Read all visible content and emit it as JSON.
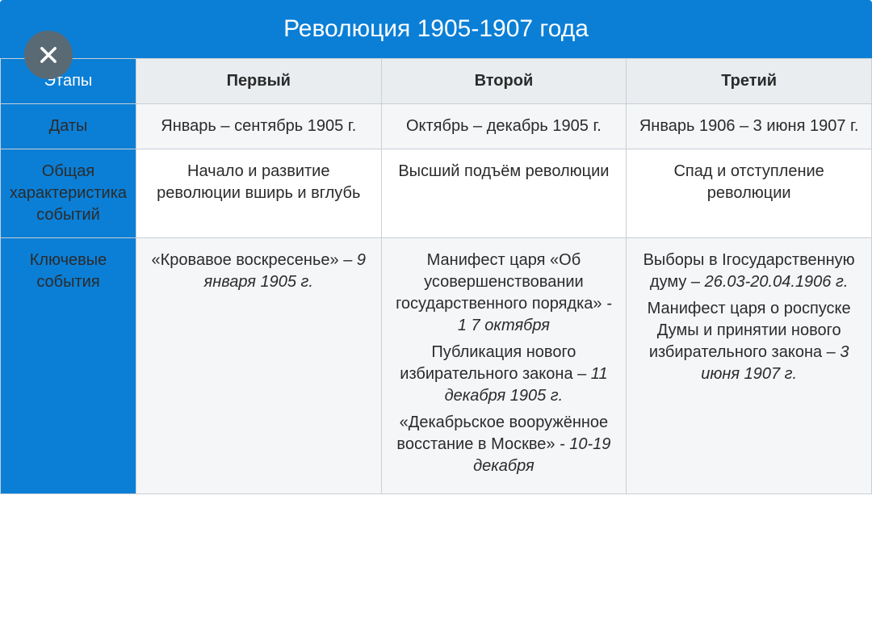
{
  "title": "Революция 1905-1907 года",
  "colors": {
    "header_bg": "#0b7fd6",
    "header_text": "#ffffff",
    "close_bg": "#5a6a75",
    "border": "#c9cfd4",
    "row_alt": "#f4f6f8",
    "row_header": "#e9edf0",
    "text": "#2b2b2b"
  },
  "typography": {
    "title_fontsize": 30,
    "cell_fontsize": 20,
    "font_family": "Arial"
  },
  "layout": {
    "label_col_width": 168,
    "data_col_width": 304
  },
  "table": {
    "row_labels": {
      "stages": "Этапы",
      "dates": "Даты",
      "characteristic": "Общая характеристика событий",
      "key_events": "Ключевые события"
    },
    "columns": [
      {
        "stage": "Первый",
        "dates": "Январь – сентябрь 1905 г.",
        "characteristic": "Начало и развитие революции вширь и вглубь",
        "events": [
          {
            "name": "«Кровавое воскресенье»",
            "date": "– 9 января 1905 г."
          }
        ]
      },
      {
        "stage": "Второй",
        "dates": "Октябрь – декабрь 1905 г.",
        "characteristic": "Высший подъём революции",
        "events": [
          {
            "name": "Манифест царя «Об усовершенствовании государственного порядка»",
            "date": "- 1 7 октября"
          },
          {
            "name": "Публикация нового избирательного закона",
            "date": "– 11 декабря 1905 г."
          },
          {
            "name": "«Декабрьское вооружённое восстание в Москве»",
            "date": "- 10-19 декабря"
          }
        ]
      },
      {
        "stage": "Третий",
        "dates": "Январь 1906 – 3 июня 1907 г.",
        "characteristic": "Спад и отступление революции",
        "events": [
          {
            "name": "Выборы в Iгосударственную думу",
            "date": "– 26.03-20.04.1906 г."
          },
          {
            "name": "Манифест царя о роспуске Думы и принятии нового избирательного закона",
            "date": "– 3 июня 1907 г."
          }
        ]
      }
    ]
  }
}
